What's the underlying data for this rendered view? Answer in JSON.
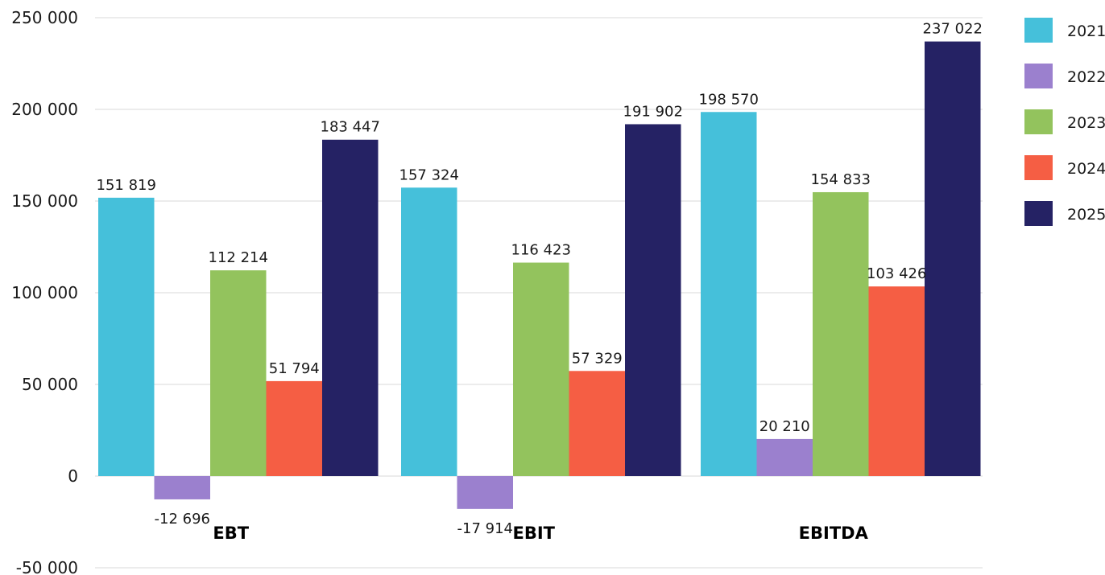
{
  "chart_data": {
    "type": "bar",
    "categories": [
      "EBT",
      "EBIT",
      "EBITDA"
    ],
    "series": [
      {
        "name": "2021",
        "color": "#45C0DA",
        "values": [
          151819,
          157324,
          198570
        ],
        "labels": [
          "151 819",
          "157 324",
          "198 570"
        ]
      },
      {
        "name": "2022",
        "color": "#9B80CE",
        "values": [
          -12696,
          -17914,
          20210
        ],
        "labels": [
          "-12 696",
          "-17 914",
          "20 210"
        ]
      },
      {
        "name": "2023",
        "color": "#93C35D",
        "values": [
          112214,
          116423,
          154833
        ],
        "labels": [
          "112 214",
          "116 423",
          "154 833"
        ]
      },
      {
        "name": "2024",
        "color": "#F55E44",
        "values": [
          51794,
          57329,
          103426
        ],
        "labels": [
          "51 794",
          "57 329",
          "103 426"
        ]
      },
      {
        "name": "2025",
        "color": "#252264",
        "values": [
          183447,
          191902,
          237022
        ],
        "labels": [
          "183 447",
          "191 902",
          "237 022"
        ]
      }
    ],
    "yticks": [
      250000,
      200000,
      150000,
      100000,
      50000,
      0,
      -50000
    ],
    "ytick_labels": [
      "250 000",
      "200 000",
      "150 000",
      "100 000",
      "50 000",
      "0",
      "-50 000"
    ],
    "ylim": [
      -50000,
      250000
    ],
    "grid": true,
    "legend": "right"
  }
}
